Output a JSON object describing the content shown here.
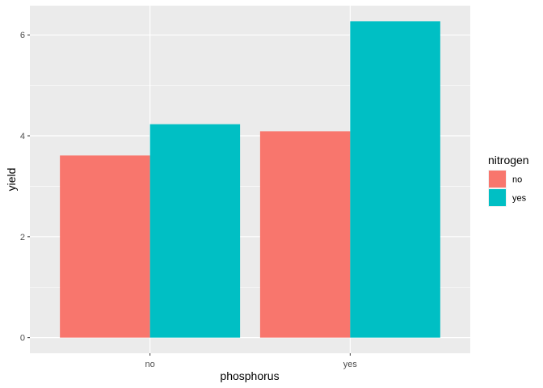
{
  "chart_data": {
    "type": "bar",
    "title": "",
    "xlabel": "phosphorus",
    "ylabel": "yield",
    "categories": [
      "no",
      "yes"
    ],
    "series": [
      {
        "name": "no",
        "color": "#F8766D",
        "values": [
          3.61,
          4.09
        ]
      },
      {
        "name": "yes",
        "color": "#00BFC4",
        "values": [
          4.23,
          6.27
        ]
      }
    ],
    "ylim": [
      -0.31,
      6.58
    ],
    "yticks": [
      0,
      2,
      4,
      6
    ],
    "ytick_labels": [
      "0",
      "2",
      "4",
      "6"
    ],
    "grid": true,
    "panel_background": "#EBEBEB",
    "legend": {
      "title": "nitrogen",
      "position": "right"
    }
  }
}
